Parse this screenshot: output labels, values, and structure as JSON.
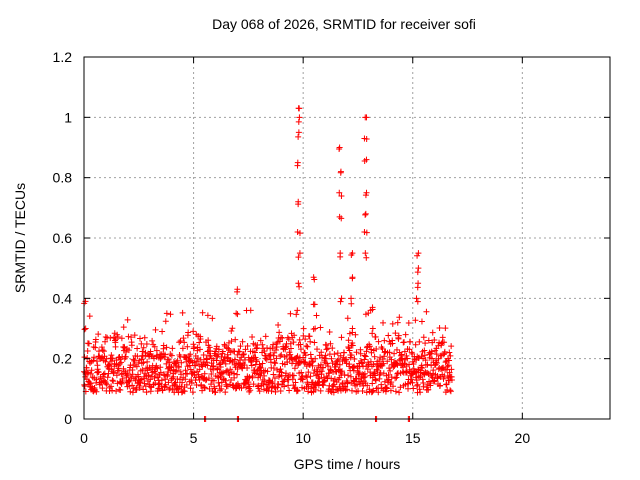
{
  "chart_data": {
    "type": "scatter",
    "title": "Day 068 of 2026, SRMTID for receiver sofi",
    "xlabel": "GPS time / hours",
    "ylabel": "SRMTID / TECUs",
    "xlim": [
      0,
      24
    ],
    "ylim": [
      0,
      1.2
    ],
    "xticks": [
      0,
      5,
      10,
      15,
      20
    ],
    "yticks": [
      0,
      0.2,
      0.4,
      0.6,
      0.8,
      1,
      1.2
    ],
    "xtick_labels": [
      "0",
      "5",
      "10",
      "15",
      "20"
    ],
    "ytick_labels": [
      "0",
      "0.2",
      "0.4",
      "0.6",
      "0.8",
      "1",
      "1.2"
    ],
    "grid": true,
    "marker": "+",
    "series_color": "#ff0000",
    "x_end_hours": 16.8,
    "baseline_range": [
      0.05,
      0.3
    ],
    "zero_markers_x": [
      5.5,
      7.0,
      13.3,
      14.8
    ],
    "spikes": [
      {
        "x": 0.05,
        "y": [
          0.3,
          0.39
        ]
      },
      {
        "x": 6.95,
        "y": [
          0.35,
          0.43
        ]
      },
      {
        "x": 9.8,
        "y": [
          0.45,
          0.55,
          0.62,
          0.72,
          0.85,
          0.95,
          1.0,
          1.03
        ]
      },
      {
        "x": 10.5,
        "y": [
          0.3,
          0.38,
          0.47
        ]
      },
      {
        "x": 11.7,
        "y": [
          0.4,
          0.55,
          0.67,
          0.75,
          0.82,
          0.9
        ]
      },
      {
        "x": 12.2,
        "y": [
          0.3,
          0.4,
          0.47,
          0.55
        ]
      },
      {
        "x": 12.85,
        "y": [
          0.55,
          0.62,
          0.68,
          0.75,
          0.86,
          0.93,
          1.0
        ]
      },
      {
        "x": 13.2,
        "y": [
          0.3,
          0.37
        ]
      },
      {
        "x": 15.2,
        "y": [
          0.4,
          0.45,
          0.5,
          0.55
        ]
      }
    ]
  }
}
